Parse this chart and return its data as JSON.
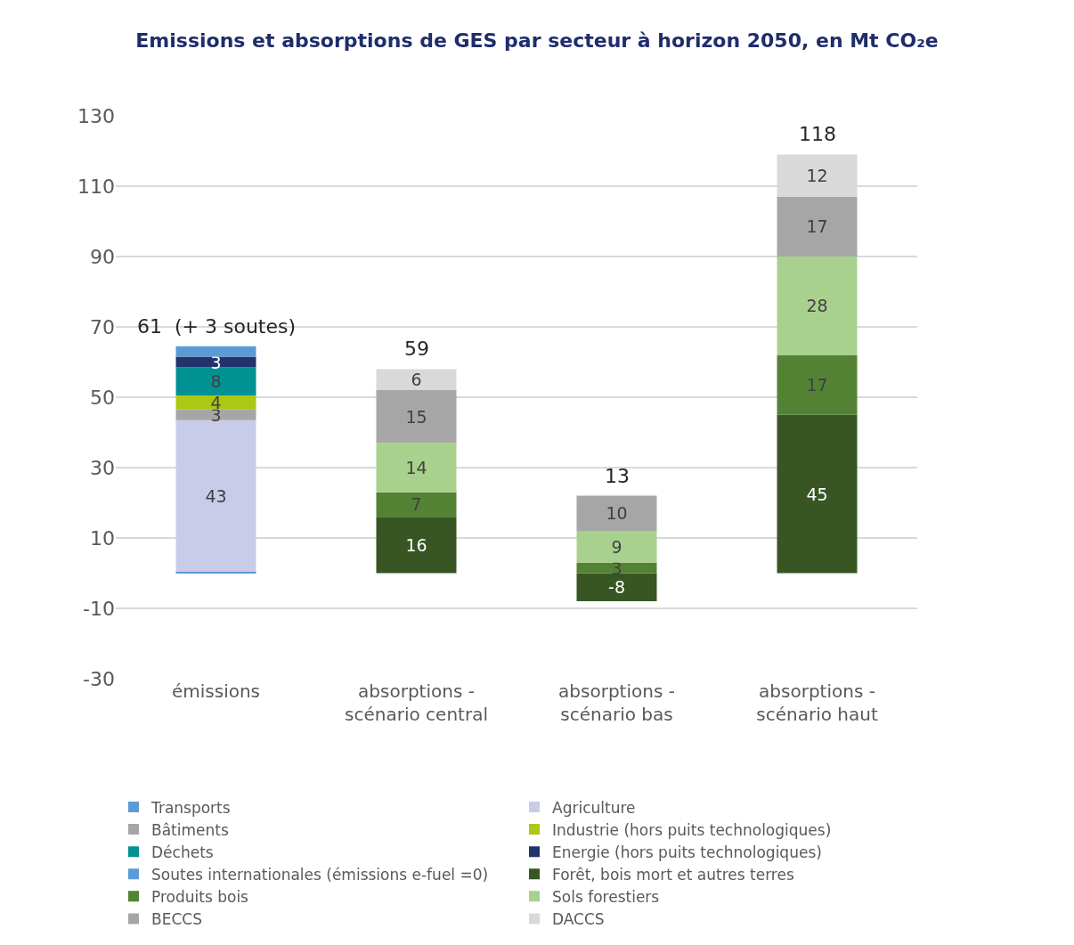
{
  "chart_data": {
    "type": "bar",
    "stacked": true,
    "title": "Emissions et absorptions de GES par secteur à horizon 2050, en Mt CO₂e",
    "categories": [
      "émissions",
      "absorptions - scénario central",
      "absorptions - scénario bas",
      "absorptions - scénario haut"
    ],
    "series": [
      {
        "name": "Transports",
        "color": "#5b9bd5",
        "values": [
          0.5,
          null,
          null,
          null
        ],
        "value_labels": [
          null,
          null,
          null,
          null
        ]
      },
      {
        "name": "Agriculture",
        "color": "#c9cce8",
        "values": [
          43,
          null,
          null,
          null
        ],
        "value_labels": [
          "43",
          null,
          null,
          null
        ]
      },
      {
        "name": "Bâtiments",
        "color": "#a6a6a6",
        "values": [
          3,
          null,
          null,
          null
        ],
        "value_labels": [
          "3",
          null,
          null,
          null
        ]
      },
      {
        "name": "Industrie (hors puits technologiques)",
        "color": "#acc812",
        "values": [
          4,
          null,
          null,
          null
        ],
        "value_labels": [
          "4",
          null,
          null,
          null
        ]
      },
      {
        "name": "Déchets",
        "color": "#009193",
        "values": [
          8,
          null,
          null,
          null
        ],
        "value_labels": [
          "8",
          null,
          null,
          null
        ]
      },
      {
        "name": "Energie (hors puits technologiques)",
        "color": "#22336b",
        "values": [
          3,
          null,
          null,
          null
        ],
        "value_labels": [
          "3",
          null,
          null,
          null
        ]
      },
      {
        "name": "Soutes internationales (émissions e-fuel =0)",
        "color": "#5b9bd5",
        "values": [
          3,
          null,
          null,
          null
        ],
        "value_labels": [
          null,
          null,
          null,
          null
        ]
      },
      {
        "name": "Forêt, bois mort et autres terres",
        "color": "#375623",
        "values": [
          null,
          16,
          -8,
          45
        ],
        "value_labels": [
          null,
          "16",
          "-8",
          "45"
        ]
      },
      {
        "name": "Produits bois",
        "color": "#548235",
        "values": [
          null,
          7,
          3,
          17
        ],
        "value_labels": [
          null,
          "7",
          "3",
          "17"
        ]
      },
      {
        "name": "Sols forestiers",
        "color": "#a9d18e",
        "values": [
          null,
          14,
          9,
          28
        ],
        "value_labels": [
          null,
          "14",
          "9",
          "28"
        ]
      },
      {
        "name": "BECCS",
        "color": "#a6a6a6",
        "values": [
          null,
          15,
          10,
          17
        ],
        "value_labels": [
          null,
          "15",
          "10",
          "17"
        ]
      },
      {
        "name": "DACCS",
        "color": "#d9d9d9",
        "values": [
          null,
          6,
          null,
          12
        ],
        "value_labels": [
          null,
          "6",
          null,
          "12"
        ]
      }
    ],
    "totals": [
      "61  (+ 3 soutes)",
      "59",
      "13",
      "118"
    ],
    "ylim": [
      -30,
      130
    ],
    "yticks": [
      -30,
      -10,
      10,
      30,
      50,
      70,
      90,
      110,
      130
    ],
    "grid": "y",
    "legend": "bottom"
  }
}
